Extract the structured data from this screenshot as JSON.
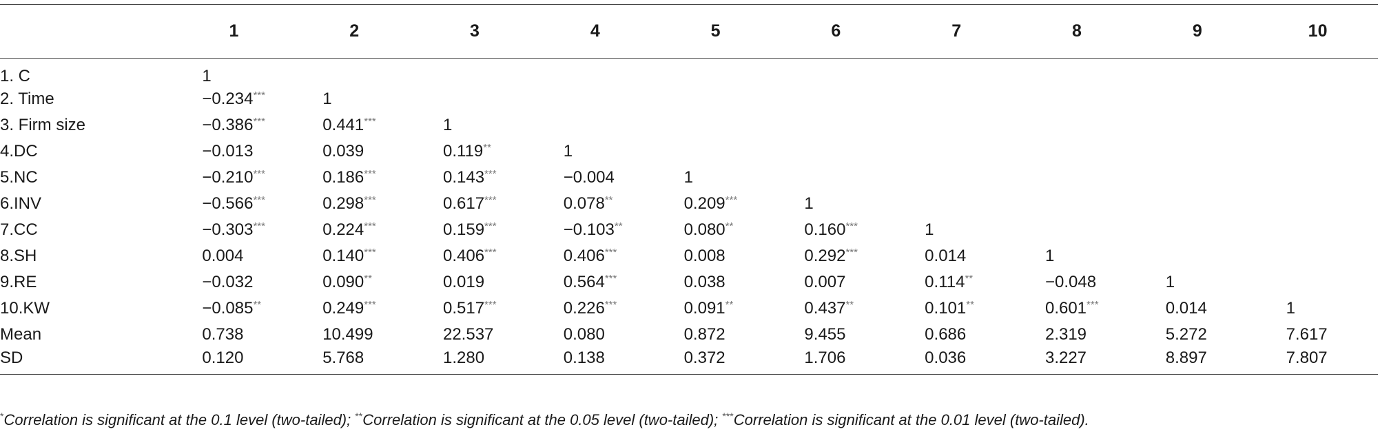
{
  "table": {
    "column_headers": [
      "",
      "1",
      "2",
      "3",
      "4",
      "5",
      "6",
      "7",
      "8",
      "9",
      "10"
    ],
    "rows": [
      {
        "label": "1. C",
        "cells": [
          {
            "v": "1",
            "s": ""
          }
        ]
      },
      {
        "label": "2. Time",
        "cells": [
          {
            "v": "−0.234",
            "s": "***"
          },
          {
            "v": "1",
            "s": ""
          }
        ]
      },
      {
        "label": "3. Firm size",
        "cells": [
          {
            "v": "−0.386",
            "s": "***"
          },
          {
            "v": "0.441",
            "s": "***"
          },
          {
            "v": "1",
            "s": ""
          }
        ]
      },
      {
        "label": "4.DC",
        "cells": [
          {
            "v": "−0.013",
            "s": ""
          },
          {
            "v": "0.039",
            "s": ""
          },
          {
            "v": "0.119",
            "s": "**"
          },
          {
            "v": "1",
            "s": ""
          }
        ]
      },
      {
        "label": "5.NC",
        "cells": [
          {
            "v": "−0.210",
            "s": "***"
          },
          {
            "v": "0.186",
            "s": "***"
          },
          {
            "v": "0.143",
            "s": "***"
          },
          {
            "v": "−0.004",
            "s": ""
          },
          {
            "v": "1",
            "s": ""
          }
        ]
      },
      {
        "label": "6.INV",
        "cells": [
          {
            "v": "−0.566",
            "s": "***"
          },
          {
            "v": "0.298",
            "s": "***"
          },
          {
            "v": "0.617",
            "s": "***"
          },
          {
            "v": "0.078",
            "s": "**"
          },
          {
            "v": "0.209",
            "s": "***"
          },
          {
            "v": "1",
            "s": ""
          }
        ]
      },
      {
        "label": "7.CC",
        "cells": [
          {
            "v": "−0.303",
            "s": "***"
          },
          {
            "v": "0.224",
            "s": "***"
          },
          {
            "v": "0.159",
            "s": "***"
          },
          {
            "v": "−0.103",
            "s": "**"
          },
          {
            "v": "0.080",
            "s": "**"
          },
          {
            "v": "0.160",
            "s": "***"
          },
          {
            "v": "1",
            "s": ""
          }
        ]
      },
      {
        "label": "8.SH",
        "cells": [
          {
            "v": "0.004",
            "s": ""
          },
          {
            "v": "0.140",
            "s": "***"
          },
          {
            "v": "0.406",
            "s": "***"
          },
          {
            "v": "0.406",
            "s": "***"
          },
          {
            "v": "0.008",
            "s": ""
          },
          {
            "v": "0.292",
            "s": "***"
          },
          {
            "v": "0.014",
            "s": ""
          },
          {
            "v": "1",
            "s": ""
          }
        ]
      },
      {
        "label": "9.RE",
        "cells": [
          {
            "v": "−0.032",
            "s": ""
          },
          {
            "v": "0.090",
            "s": "**"
          },
          {
            "v": "0.019",
            "s": ""
          },
          {
            "v": "0.564",
            "s": "***"
          },
          {
            "v": "0.038",
            "s": ""
          },
          {
            "v": "0.007",
            "s": ""
          },
          {
            "v": "0.114",
            "s": "**"
          },
          {
            "v": "−0.048",
            "s": ""
          },
          {
            "v": "1",
            "s": ""
          }
        ]
      },
      {
        "label": "10.KW",
        "cells": [
          {
            "v": "−0.085",
            "s": "**"
          },
          {
            "v": "0.249",
            "s": "***"
          },
          {
            "v": "0.517",
            "s": "***"
          },
          {
            "v": "0.226",
            "s": "***"
          },
          {
            "v": "0.091",
            "s": "**"
          },
          {
            "v": "0.437",
            "s": "**"
          },
          {
            "v": "0.101",
            "s": "**"
          },
          {
            "v": "0.601",
            "s": "***"
          },
          {
            "v": "0.014",
            "s": ""
          },
          {
            "v": "1",
            "s": ""
          }
        ]
      },
      {
        "label": "Mean",
        "cells": [
          {
            "v": "0.738",
            "s": ""
          },
          {
            "v": "10.499",
            "s": ""
          },
          {
            "v": "22.537",
            "s": ""
          },
          {
            "v": "0.080",
            "s": ""
          },
          {
            "v": "0.872",
            "s": ""
          },
          {
            "v": "9.455",
            "s": ""
          },
          {
            "v": "0.686",
            "s": ""
          },
          {
            "v": "2.319",
            "s": ""
          },
          {
            "v": "5.272",
            "s": ""
          },
          {
            "v": "7.617",
            "s": ""
          }
        ]
      },
      {
        "label": "SD",
        "cells": [
          {
            "v": "0.120",
            "s": ""
          },
          {
            "v": "5.768",
            "s": ""
          },
          {
            "v": "1.280",
            "s": ""
          },
          {
            "v": "0.138",
            "s": ""
          },
          {
            "v": "0.372",
            "s": ""
          },
          {
            "v": "1.706",
            "s": ""
          },
          {
            "v": "0.036",
            "s": ""
          },
          {
            "v": "3.227",
            "s": ""
          },
          {
            "v": "8.897",
            "s": ""
          },
          {
            "v": "7.807",
            "s": ""
          }
        ]
      }
    ]
  },
  "footnote": {
    "m1": "*",
    "t1": "Correlation is significant at the 0.1 level (two-tailed); ",
    "m2": "**",
    "t2": "Correlation is significant at the 0.05 level (two-tailed); ",
    "m3": "***",
    "t3": "Correlation is significant at the 0.01 level (two-tailed)."
  }
}
